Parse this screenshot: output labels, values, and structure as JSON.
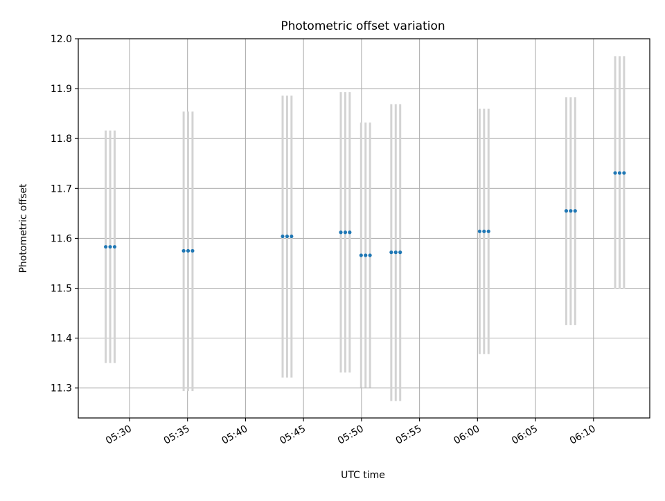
{
  "chart_data": {
    "type": "scatter",
    "title": "Photometric offset variation",
    "xlabel": "UTC time",
    "ylabel": "Photometric offset",
    "ylim": [
      11.24,
      12.0
    ],
    "xlim": [
      "05:25:35",
      "06:14:51"
    ],
    "grid": true,
    "x_ticks": [
      "05:30",
      "05:35",
      "05:40",
      "05:45",
      "05:50",
      "05:55",
      "06:00",
      "06:05",
      "06:10"
    ],
    "y_ticks": [
      "11.3",
      "11.4",
      "11.5",
      "11.6",
      "11.7",
      "11.8",
      "11.9",
      "12.0"
    ],
    "colors": {
      "point": "#1f77b4",
      "errorbar": "#d3d3d3",
      "grid": "#b0b0b0"
    },
    "groups": [
      {
        "x": [
          "05:27:57",
          "05:28:20",
          "05:28:43"
        ],
        "y": 11.583,
        "yerr_low": 11.35,
        "yerr_high": 11.816
      },
      {
        "x": [
          "05:34:40",
          "05:35:03",
          "05:35:26"
        ],
        "y": 11.575,
        "yerr_low": 11.294,
        "yerr_high": 11.854
      },
      {
        "x": [
          "05:43:12",
          "05:43:35",
          "05:43:58"
        ],
        "y": 11.604,
        "yerr_low": 11.321,
        "yerr_high": 11.886
      },
      {
        "x": [
          "05:48:13",
          "05:48:36",
          "05:48:59"
        ],
        "y": 11.612,
        "yerr_low": 11.331,
        "yerr_high": 11.893
      },
      {
        "x": [
          "05:49:58",
          "05:50:21",
          "05:50:44"
        ],
        "y": 11.566,
        "yerr_low": 11.301,
        "yerr_high": 11.832
      },
      {
        "x": [
          "05:52:34",
          "05:52:57",
          "05:53:20"
        ],
        "y": 11.572,
        "yerr_low": 11.274,
        "yerr_high": 11.869
      },
      {
        "x": [
          "06:00:11",
          "06:00:34",
          "06:00:57"
        ],
        "y": 11.614,
        "yerr_low": 11.368,
        "yerr_high": 11.86
      },
      {
        "x": [
          "06:07:39",
          "06:08:02",
          "06:08:25"
        ],
        "y": 11.655,
        "yerr_low": 11.426,
        "yerr_high": 11.883
      },
      {
        "x": [
          "06:11:52",
          "06:12:15",
          "06:12:38"
        ],
        "y": 11.731,
        "yerr_low": 11.499,
        "yerr_high": 11.965
      }
    ]
  }
}
